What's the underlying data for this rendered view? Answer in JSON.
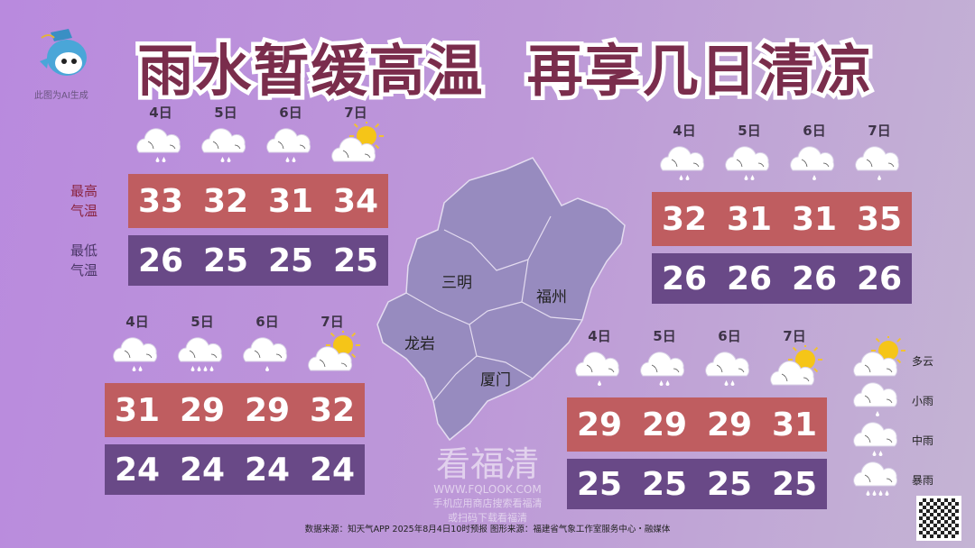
{
  "title": "雨水暂缓高温  再享几日清凉",
  "ai_note": "此图为AI生成",
  "row_labels": {
    "high": [
      "最高",
      "气温"
    ],
    "low": [
      "最低",
      "气温"
    ]
  },
  "map": {
    "cities": [
      "三明",
      "福州",
      "龙岩",
      "厦门"
    ]
  },
  "panels": [
    {
      "dates": [
        "4日",
        "5日",
        "6日",
        "7日"
      ],
      "icons": [
        "moderate-rain",
        "moderate-rain",
        "moderate-rain",
        "partly-cloudy"
      ],
      "high": [
        "33",
        "32",
        "31",
        "34"
      ],
      "low": [
        "26",
        "25",
        "25",
        "25"
      ]
    },
    {
      "dates": [
        "4日",
        "5日",
        "6日",
        "7日"
      ],
      "icons": [
        "moderate-rain",
        "moderate-rain",
        "light-rain",
        "light-rain"
      ],
      "high": [
        "32",
        "31",
        "31",
        "35"
      ],
      "low": [
        "26",
        "26",
        "26",
        "26"
      ]
    },
    {
      "dates": [
        "4日",
        "5日",
        "6日",
        "7日"
      ],
      "icons": [
        "moderate-rain",
        "heavy-rain",
        "light-rain",
        "partly-cloudy"
      ],
      "high": [
        "31",
        "29",
        "29",
        "32"
      ],
      "low": [
        "24",
        "24",
        "24",
        "24"
      ]
    },
    {
      "dates": [
        "4日",
        "5日",
        "6日",
        "7日"
      ],
      "icons": [
        "light-rain",
        "moderate-rain",
        "moderate-rain",
        "partly-cloudy"
      ],
      "high": [
        "29",
        "29",
        "29",
        "31"
      ],
      "low": [
        "25",
        "25",
        "25",
        "25"
      ]
    }
  ],
  "legend": [
    {
      "icon": "partly-cloudy",
      "label": "多云"
    },
    {
      "icon": "light-rain",
      "label": "小雨"
    },
    {
      "icon": "moderate-rain",
      "label": "中雨"
    },
    {
      "icon": "heavy-rain",
      "label": "暴雨"
    }
  ],
  "watermark": {
    "brand": "看福清",
    "url": "WWW.FQLOOK.COM",
    "hint1": "手机应用商店搜索看福清",
    "hint2": "或扫码下载看福清"
  },
  "footer": "数据来源：知天气APP  2025年8月4日10时预报   图形来源：福建省气象工作室服务中心・融媒体",
  "colors": {
    "high": "#bf5d60",
    "low": "#694987",
    "title": "#7a2d4c"
  }
}
